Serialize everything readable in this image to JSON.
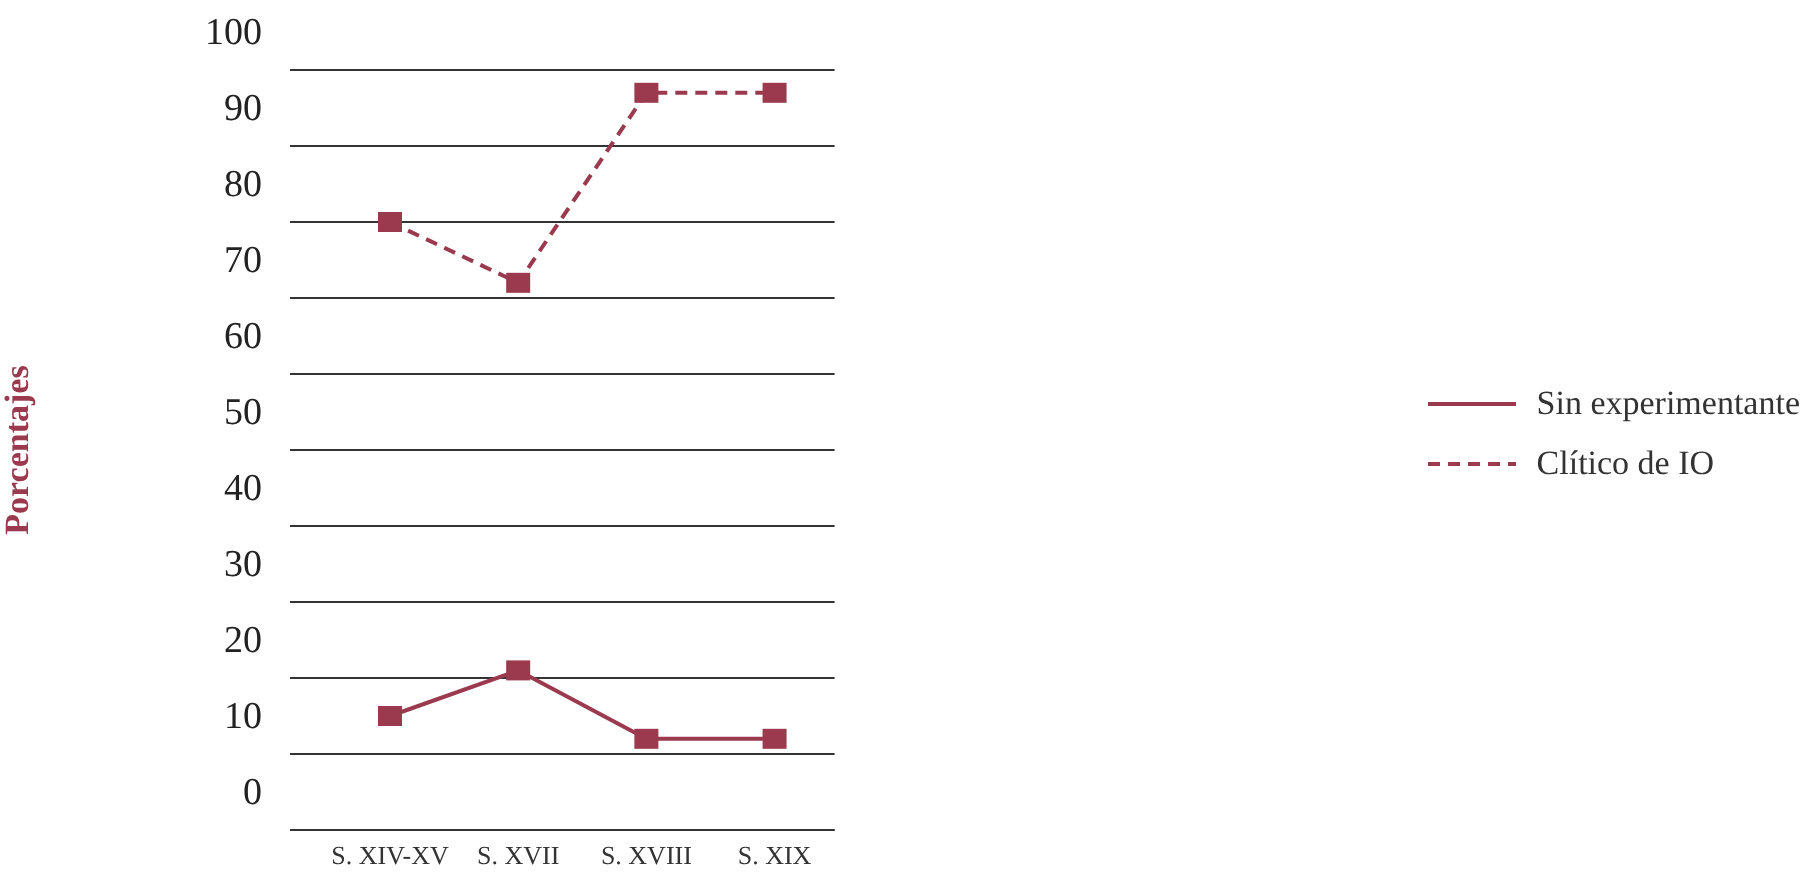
{
  "chart_data": {
    "type": "line",
    "ylabel": "Porcentajes",
    "categories": [
      "S. XIV-XV",
      "S. XVII",
      "S. XVIII",
      "S. XIX"
    ],
    "series": [
      {
        "name": "Sin experimentante",
        "color": "#9b3a4e",
        "values": [
          15,
          21,
          12,
          12
        ],
        "line_style": "solid"
      },
      {
        "name": "Clítico de IO",
        "color": "#9b3a4e",
        "values": [
          80,
          72,
          97,
          97
        ],
        "line_style": "dashed"
      }
    ],
    "ylim": [
      0,
      100
    ],
    "yticks": [
      0,
      10,
      20,
      30,
      40,
      50,
      60,
      70,
      80,
      90,
      100
    ],
    "grid": "y",
    "legend": "right",
    "marker": "square"
  }
}
